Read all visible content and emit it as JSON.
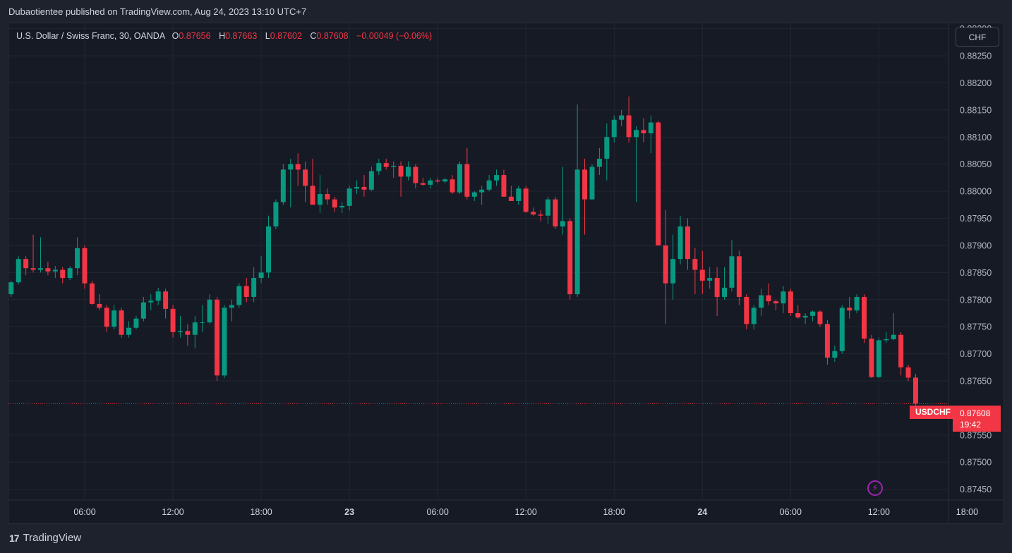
{
  "caption": "Dubaotientee published on TradingView.com, Aug 24, 2023 13:10 UTC+7",
  "legend": {
    "symbol": "U.S. Dollar / Swiss Franc, 30, OANDA",
    "o_label": "O",
    "o_value": "0.87656",
    "h_label": "H",
    "h_value": "0.87663",
    "l_label": "L",
    "l_value": "0.87602",
    "c_label": "C",
    "c_value": "0.87608",
    "change": "−0.00049 (−0.06%)"
  },
  "currency_button": "CHF",
  "last_price": {
    "symbol": "USDCHF",
    "price": "0.87608",
    "countdown": "19:42"
  },
  "brand": "TradingView",
  "icons": {
    "alert": "lightning-icon",
    "logo": "tradingview-logo-icon"
  },
  "colors": {
    "up": "#089981",
    "down": "#f23645",
    "background": "#161a25",
    "grid": "#232632",
    "alert": "#9c27b0"
  },
  "chart_data": {
    "type": "candlestick",
    "title": "U.S. Dollar / Swiss Franc, 30, OANDA",
    "timeframe": "30",
    "ylim": [
      0.8743,
      0.8831
    ],
    "y_ticks": [
      "0.88300",
      "0.88250",
      "0.88200",
      "0.88150",
      "0.88100",
      "0.88050",
      "0.88000",
      "0.87950",
      "0.87900",
      "0.87850",
      "0.87800",
      "0.87750",
      "0.87700",
      "0.87650",
      "0.87550",
      "0.87500",
      "0.87450"
    ],
    "x_ticks": [
      {
        "i": 10,
        "label": "06:00",
        "major": false
      },
      {
        "i": 22,
        "label": "12:00",
        "major": false
      },
      {
        "i": 34,
        "label": "18:00",
        "major": false
      },
      {
        "i": 46,
        "label": "23",
        "major": true
      },
      {
        "i": 58,
        "label": "06:00",
        "major": false
      },
      {
        "i": 70,
        "label": "12:00",
        "major": false
      },
      {
        "i": 82,
        "label": "18:00",
        "major": false
      },
      {
        "i": 94,
        "label": "24",
        "major": true
      },
      {
        "i": 106,
        "label": "06:00",
        "major": false
      },
      {
        "i": 118,
        "label": "12:00",
        "major": false
      },
      {
        "i": 130,
        "label": "18:00",
        "major": false
      }
    ],
    "candles": [
      [
        0.8781,
        0.87835,
        0.87805,
        0.87832
      ],
      [
        0.87832,
        0.8788,
        0.87828,
        0.87875
      ],
      [
        0.87875,
        0.8788,
        0.87845,
        0.87858
      ],
      [
        0.87858,
        0.8792,
        0.8785,
        0.87855
      ],
      [
        0.87855,
        0.87915,
        0.8785,
        0.87858
      ],
      [
        0.87858,
        0.8787,
        0.87845,
        0.87852
      ],
      [
        0.87852,
        0.87862,
        0.8784,
        0.87855
      ],
      [
        0.87855,
        0.8786,
        0.8783,
        0.8784
      ],
      [
        0.8784,
        0.87862,
        0.87836,
        0.87858
      ],
      [
        0.87858,
        0.87915,
        0.87845,
        0.87895
      ],
      [
        0.87895,
        0.879,
        0.8782,
        0.8783
      ],
      [
        0.8783,
        0.87835,
        0.8779,
        0.87792
      ],
      [
        0.87792,
        0.8781,
        0.8778,
        0.87785
      ],
      [
        0.87785,
        0.8779,
        0.8774,
        0.8775
      ],
      [
        0.8775,
        0.8779,
        0.87745,
        0.8778
      ],
      [
        0.8778,
        0.87785,
        0.8773,
        0.87735
      ],
      [
        0.87735,
        0.8776,
        0.8773,
        0.87748
      ],
      [
        0.87748,
        0.8777,
        0.87745,
        0.87765
      ],
      [
        0.87765,
        0.87805,
        0.8776,
        0.87795
      ],
      [
        0.87795,
        0.8781,
        0.8778,
        0.87798
      ],
      [
        0.87798,
        0.87822,
        0.8779,
        0.87815
      ],
      [
        0.87815,
        0.8782,
        0.87765,
        0.87783
      ],
      [
        0.87783,
        0.8779,
        0.8773,
        0.8774
      ],
      [
        0.8774,
        0.8777,
        0.8773,
        0.87742
      ],
      [
        0.87742,
        0.87755,
        0.87715,
        0.87735
      ],
      [
        0.87735,
        0.8777,
        0.8771,
        0.87758
      ],
      [
        0.87758,
        0.8779,
        0.8774,
        0.87758
      ],
      [
        0.87758,
        0.8781,
        0.87755,
        0.878
      ],
      [
        0.878,
        0.87805,
        0.8765,
        0.8766
      ],
      [
        0.8766,
        0.8779,
        0.87655,
        0.87785
      ],
      [
        0.87785,
        0.878,
        0.8776,
        0.8779
      ],
      [
        0.8779,
        0.8783,
        0.87785,
        0.87825
      ],
      [
        0.87825,
        0.8784,
        0.87795,
        0.87805
      ],
      [
        0.87805,
        0.8786,
        0.87795,
        0.8784
      ],
      [
        0.8784,
        0.8788,
        0.8783,
        0.8785
      ],
      [
        0.8785,
        0.87955,
        0.8784,
        0.87935
      ],
      [
        0.87935,
        0.87985,
        0.8793,
        0.8798
      ],
      [
        0.8798,
        0.8805,
        0.87975,
        0.8804
      ],
      [
        0.8804,
        0.8806,
        0.8797,
        0.8805
      ],
      [
        0.8805,
        0.8807,
        0.8801,
        0.8804
      ],
      [
        0.8804,
        0.88055,
        0.8798,
        0.8801
      ],
      [
        0.8801,
        0.8806,
        0.8798,
        0.87975
      ],
      [
        0.87975,
        0.8803,
        0.8796,
        0.87995
      ],
      [
        0.87995,
        0.88005,
        0.87975,
        0.87985
      ],
      [
        0.87985,
        0.8799,
        0.87962,
        0.8797
      ],
      [
        0.8797,
        0.8798,
        0.8796,
        0.87973
      ],
      [
        0.87973,
        0.8801,
        0.87965,
        0.88005
      ],
      [
        0.88005,
        0.8802,
        0.87995,
        0.88008
      ],
      [
        0.88008,
        0.8803,
        0.8799,
        0.88003
      ],
      [
        0.88003,
        0.88045,
        0.88,
        0.88037
      ],
      [
        0.88037,
        0.8806,
        0.8803,
        0.88052
      ],
      [
        0.88052,
        0.8806,
        0.8804,
        0.88045
      ],
      [
        0.88045,
        0.88055,
        0.88025,
        0.88047
      ],
      [
        0.88047,
        0.88055,
        0.8799,
        0.88027
      ],
      [
        0.88027,
        0.88055,
        0.8802,
        0.88045
      ],
      [
        0.88045,
        0.8805,
        0.88005,
        0.88015
      ],
      [
        0.88015,
        0.88025,
        0.8801,
        0.88012
      ],
      [
        0.88012,
        0.88025,
        0.88005,
        0.8802
      ],
      [
        0.8802,
        0.88025,
        0.88015,
        0.88018
      ],
      [
        0.88018,
        0.88025,
        0.88015,
        0.88022
      ],
      [
        0.88022,
        0.8803,
        0.87995,
        0.87998
      ],
      [
        0.87998,
        0.88055,
        0.87995,
        0.8805
      ],
      [
        0.8805,
        0.8808,
        0.87985,
        0.8799
      ],
      [
        0.8799,
        0.88,
        0.87982,
        0.87998
      ],
      [
        0.87998,
        0.8801,
        0.87975,
        0.88003
      ],
      [
        0.88003,
        0.8803,
        0.88,
        0.8802
      ],
      [
        0.8802,
        0.8804,
        0.8801,
        0.8803
      ],
      [
        0.8803,
        0.8804,
        0.8799,
        0.8799
      ],
      [
        0.8799,
        0.8801,
        0.87985,
        0.87982
      ],
      [
        0.87982,
        0.8801,
        0.87975,
        0.88005
      ],
      [
        0.88005,
        0.8801,
        0.8796,
        0.87962
      ],
      [
        0.87962,
        0.8797,
        0.87955,
        0.87957
      ],
      [
        0.87957,
        0.87965,
        0.87945,
        0.87955
      ],
      [
        0.87955,
        0.8799,
        0.8794,
        0.87985
      ],
      [
        0.87985,
        0.8799,
        0.8793,
        0.87935
      ],
      [
        0.87935,
        0.88045,
        0.8792,
        0.87945
      ],
      [
        0.87945,
        0.8795,
        0.878,
        0.8781
      ],
      [
        0.8781,
        0.8816,
        0.87805,
        0.8804
      ],
      [
        0.8804,
        0.8806,
        0.8792,
        0.87985
      ],
      [
        0.87985,
        0.8805,
        0.87985,
        0.88045
      ],
      [
        0.88045,
        0.8808,
        0.8803,
        0.8806
      ],
      [
        0.8806,
        0.88125,
        0.8802,
        0.881
      ],
      [
        0.881,
        0.8814,
        0.8809,
        0.88132
      ],
      [
        0.88132,
        0.8815,
        0.8812,
        0.8814
      ],
      [
        0.8814,
        0.88175,
        0.8809,
        0.881
      ],
      [
        0.881,
        0.8812,
        0.8798,
        0.88113
      ],
      [
        0.88113,
        0.88135,
        0.8809,
        0.88107
      ],
      [
        0.88107,
        0.8814,
        0.8807,
        0.88127
      ],
      [
        0.88127,
        0.8813,
        0.879,
        0.879
      ],
      [
        0.879,
        0.87965,
        0.87755,
        0.8783
      ],
      [
        0.8783,
        0.8792,
        0.878,
        0.87875
      ],
      [
        0.87875,
        0.87955,
        0.87865,
        0.87935
      ],
      [
        0.87935,
        0.8795,
        0.87855,
        0.87875
      ],
      [
        0.87875,
        0.87895,
        0.8781,
        0.87855
      ],
      [
        0.87855,
        0.8789,
        0.8781,
        0.87835
      ],
      [
        0.87835,
        0.8786,
        0.8782,
        0.8784
      ],
      [
        0.8784,
        0.8786,
        0.8777,
        0.87805
      ],
      [
        0.87805,
        0.8786,
        0.878,
        0.87822
      ],
      [
        0.87822,
        0.8791,
        0.87815,
        0.8788
      ],
      [
        0.8788,
        0.8789,
        0.8779,
        0.87805
      ],
      [
        0.87805,
        0.8781,
        0.87745,
        0.87755
      ],
      [
        0.87755,
        0.8779,
        0.87745,
        0.87785
      ],
      [
        0.87785,
        0.8782,
        0.8777,
        0.87808
      ],
      [
        0.87808,
        0.8783,
        0.8779,
        0.87797
      ],
      [
        0.87797,
        0.878,
        0.8778,
        0.87793
      ],
      [
        0.87793,
        0.87825,
        0.87775,
        0.87815
      ],
      [
        0.87815,
        0.8782,
        0.8777,
        0.87775
      ],
      [
        0.87775,
        0.8779,
        0.87765,
        0.87767
      ],
      [
        0.87767,
        0.87775,
        0.87755,
        0.8777
      ],
      [
        0.8777,
        0.8778,
        0.8776,
        0.87778
      ],
      [
        0.87778,
        0.8778,
        0.8775,
        0.87755
      ],
      [
        0.87755,
        0.87762,
        0.8768,
        0.87693
      ],
      [
        0.87693,
        0.87715,
        0.87685,
        0.87705
      ],
      [
        0.87705,
        0.8779,
        0.877,
        0.87785
      ],
      [
        0.87785,
        0.87805,
        0.87765,
        0.8778
      ],
      [
        0.8778,
        0.8781,
        0.87775,
        0.87805
      ],
      [
        0.87805,
        0.8781,
        0.8772,
        0.87728
      ],
      [
        0.87728,
        0.87735,
        0.87655,
        0.87657
      ],
      [
        0.87657,
        0.8773,
        0.87655,
        0.87725
      ],
      [
        0.87725,
        0.8774,
        0.8772,
        0.87727
      ],
      [
        0.87727,
        0.87775,
        0.87725,
        0.87735
      ],
      [
        0.87735,
        0.8774,
        0.8766,
        0.87675
      ],
      [
        0.87675,
        0.8768,
        0.8765,
        0.87656
      ],
      [
        0.87656,
        0.87663,
        0.87602,
        0.87608
      ]
    ],
    "last_price": 0.87608
  }
}
